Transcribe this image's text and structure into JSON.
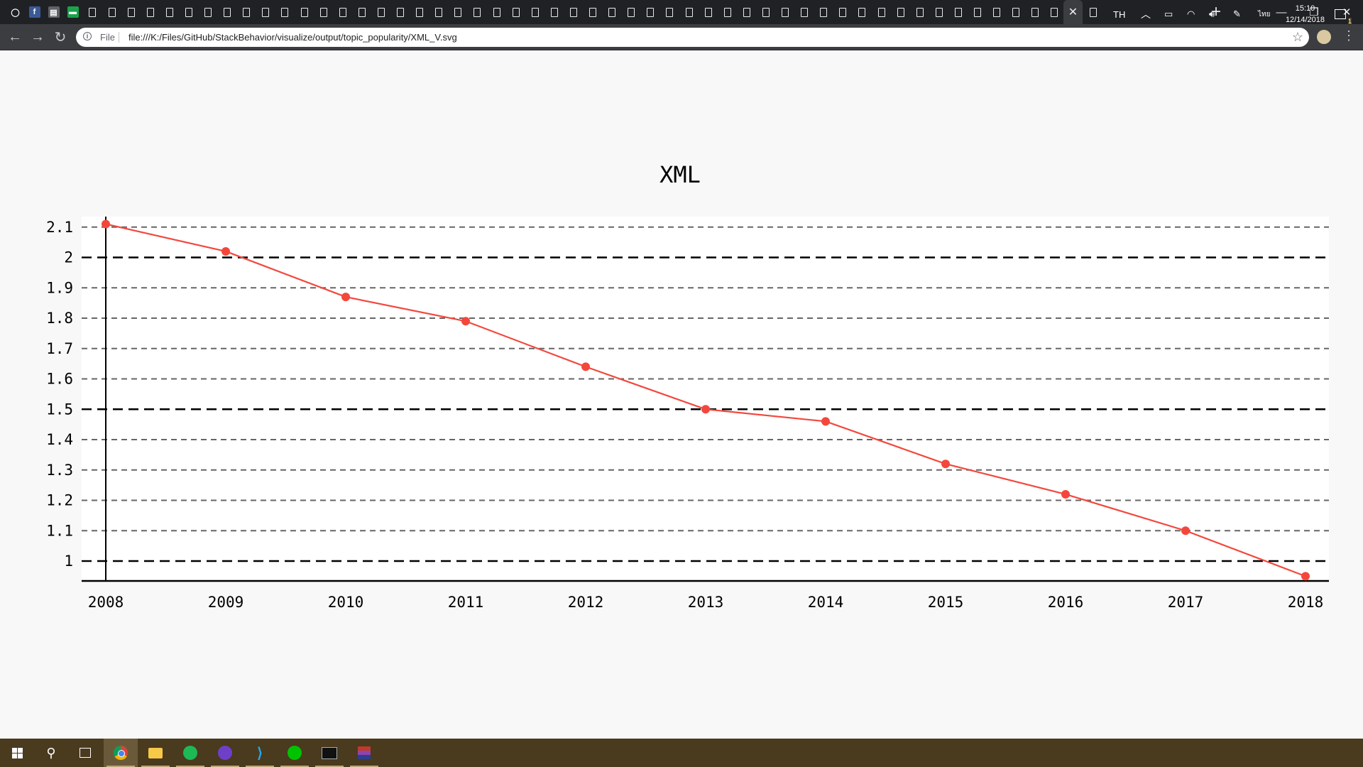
{
  "browser": {
    "active_tab_close": "✕",
    "new_tab": "+",
    "url_chip": "File",
    "url": "file:///K:/Files/GitHub/StackBehavior/visualize/output/topic_popularity/XML_V.svg",
    "window_controls": {
      "minimize": "—",
      "maximize": "❐",
      "close": "✕"
    }
  },
  "colors": {
    "series": "#f4473c",
    "grid_major": "#000000",
    "grid_minor": "#666666",
    "tabstrip": "#202124",
    "taskbar": "#4a3a1e"
  },
  "chart_data": {
    "type": "line",
    "title": "XML",
    "xlabel": "",
    "ylabel": "",
    "x": [
      "2008",
      "2009",
      "2010",
      "2011",
      "2012",
      "2013",
      "2014",
      "2015",
      "2016",
      "2017",
      "2018"
    ],
    "series": [
      {
        "values": [
          2.11,
          2.02,
          1.87,
          1.79,
          1.64,
          1.5,
          1.46,
          1.32,
          1.22,
          1.1,
          0.95
        ]
      }
    ],
    "ylim": [
      0.93,
      2.13
    ],
    "yticks": [
      1,
      1.1,
      1.2,
      1.3,
      1.4,
      1.5,
      1.6,
      1.7,
      1.8,
      1.9,
      2,
      2.1
    ],
    "ytick_labels": [
      "1",
      "1.1",
      "1.2",
      "1.3",
      "1.4",
      "1.5",
      "1.6",
      "1.7",
      "1.8",
      "1.9",
      "2",
      "2.1"
    ],
    "major_gridlines": [
      1,
      1.5,
      2
    ],
    "grid": true,
    "legend": "none"
  },
  "taskbar": {
    "language": "TH",
    "time": "15:10",
    "date": "12/14/2018",
    "notification_count": "1",
    "apps": [
      "start",
      "search",
      "task-view",
      "chrome",
      "file-explorer",
      "spotify",
      "github-desktop",
      "vscode",
      "line",
      "terminal",
      "winrar"
    ]
  }
}
